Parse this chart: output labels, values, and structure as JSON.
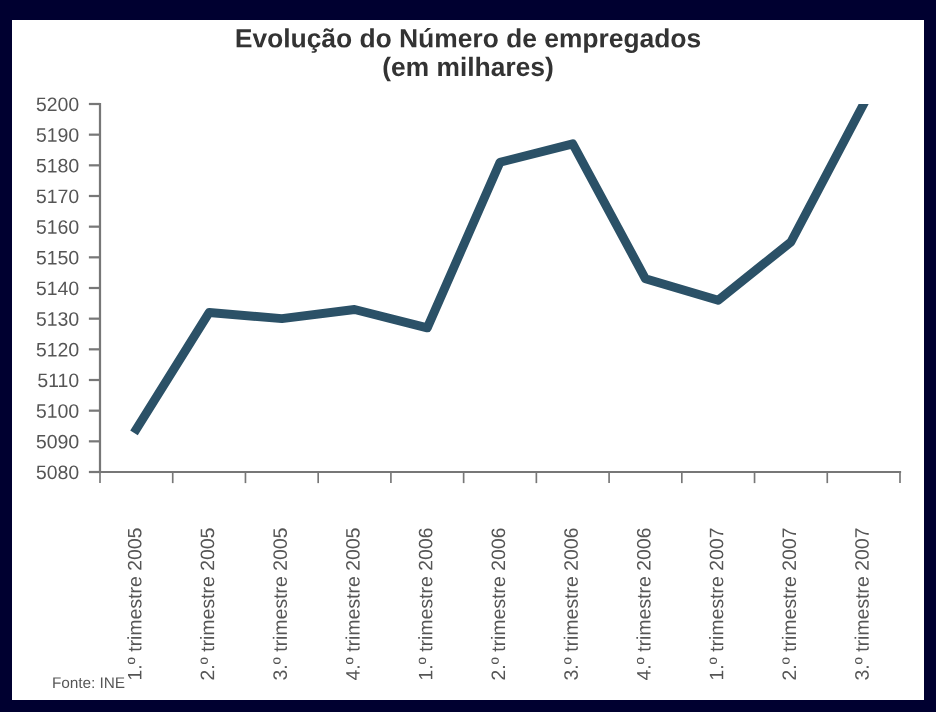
{
  "chart_data": {
    "type": "line",
    "title": "Evolução do Número de empregados\n(em milhares)",
    "categories": [
      "1.º trimestre 2005",
      "2.º trimestre 2005",
      "3.º trimestre 2005",
      "4.º trimestre 2005",
      "1.º trimestre 2006",
      "2.º trimestre 2006",
      "3.º trimestre 2006",
      "4.º trimestre 2006",
      "1.º trimestre 2007",
      "2.º trimestre 2007",
      "3.º trimestre 2007"
    ],
    "series": [
      {
        "color": "#2b5167",
        "values": [
          5094,
          5132,
          5130,
          5133,
          5127,
          5181,
          5187,
          5143,
          5136,
          5155,
          5200
        ]
      }
    ],
    "ylim": [
      5080,
      5200
    ],
    "yticks": [
      5080,
      5090,
      5100,
      5110,
      5120,
      5130,
      5140,
      5150,
      5160,
      5170,
      5180,
      5190,
      5200
    ],
    "grid": false,
    "legend": false,
    "marker": "none",
    "line_style": "solid",
    "annotations": [
      "Fonte: INE"
    ]
  }
}
